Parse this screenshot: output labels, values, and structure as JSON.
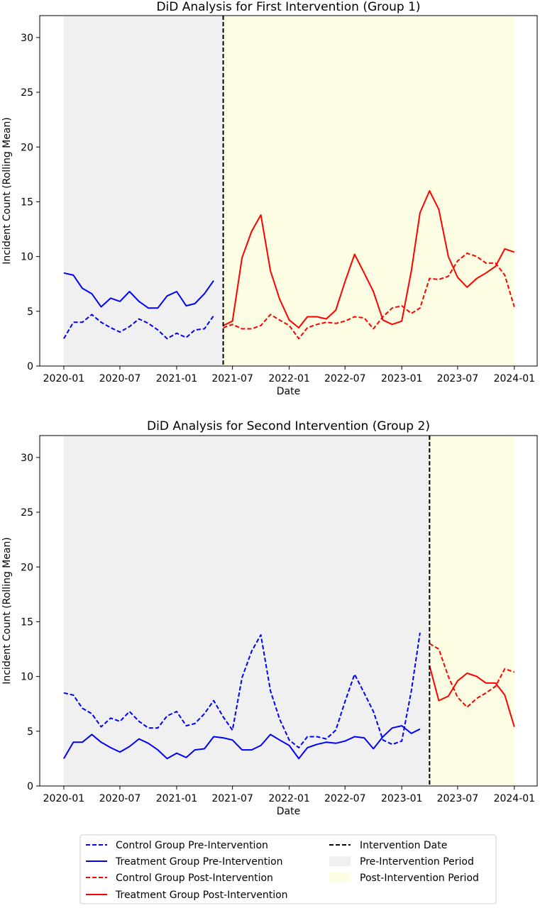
{
  "colors": {
    "control": "#0000ff",
    "treatment": "#0000ff",
    "post": "#ff0000",
    "intervention": "#000000",
    "pre_period": "#f0f0f0",
    "post_period": "#fdfde4"
  },
  "legend": {
    "control_pre": "Control Group Pre-Intervention",
    "treatment_pre": "Treatment Group Pre-Intervention",
    "control_post": "Control Group Post-Intervention",
    "treatment_post": "Treatment Group Post-Intervention",
    "intervention": "Intervention Date",
    "pre_period": "Pre-Intervention Period",
    "post_period": "Post-Intervention Period"
  },
  "chart_data": [
    {
      "type": "line",
      "title": "DiD Analysis for First Intervention (Group 1)",
      "xlabel": "Date",
      "ylabel": "Incident Count (Rolling Mean)",
      "ylim": [
        0,
        32
      ],
      "yticks": [
        0,
        5,
        10,
        15,
        20,
        25,
        30
      ],
      "xlim": [
        "2019-10-15",
        "2024-03-15"
      ],
      "xticks": [
        "2020-01",
        "2020-07",
        "2021-01",
        "2021-07",
        "2022-01",
        "2022-07",
        "2023-01",
        "2023-07",
        "2024-01"
      ],
      "intervention_date": "2021-06-01",
      "pre_period": [
        "2020-01-01",
        "2021-06-01"
      ],
      "post_period": [
        "2021-06-01",
        "2024-01-01"
      ],
      "series": [
        {
          "name": "Control Group Pre-Intervention",
          "group": "control",
          "phase": "pre",
          "x": [
            "2020-01",
            "2020-02",
            "2020-03",
            "2020-04",
            "2020-05",
            "2020-06",
            "2020-07",
            "2020-08",
            "2020-09",
            "2020-10",
            "2020-11",
            "2020-12",
            "2021-01",
            "2021-02",
            "2021-03",
            "2021-04",
            "2021-05"
          ],
          "y": [
            2.5,
            4.0,
            4.0,
            4.7,
            4.0,
            3.5,
            3.1,
            3.6,
            4.3,
            3.9,
            3.3,
            2.5,
            3.0,
            2.6,
            3.3,
            3.4,
            4.6
          ]
        },
        {
          "name": "Treatment Group Pre-Intervention",
          "group": "treatment",
          "phase": "pre",
          "x": [
            "2020-01",
            "2020-02",
            "2020-03",
            "2020-04",
            "2020-05",
            "2020-06",
            "2020-07",
            "2020-08",
            "2020-09",
            "2020-10",
            "2020-11",
            "2020-12",
            "2021-01",
            "2021-02",
            "2021-03",
            "2021-04",
            "2021-05"
          ],
          "y": [
            8.5,
            8.3,
            7.1,
            6.6,
            5.4,
            6.2,
            5.9,
            6.8,
            5.9,
            5.3,
            5.3,
            6.4,
            6.8,
            5.5,
            5.7,
            6.6,
            7.8
          ]
        },
        {
          "name": "Control Group Post-Intervention",
          "group": "control",
          "phase": "post",
          "x": [
            "2021-06",
            "2021-07",
            "2021-08",
            "2021-09",
            "2021-10",
            "2021-11",
            "2021-12",
            "2022-01",
            "2022-02",
            "2022-03",
            "2022-04",
            "2022-05",
            "2022-06",
            "2022-07",
            "2022-08",
            "2022-09",
            "2022-10",
            "2022-11",
            "2022-12",
            "2023-01",
            "2023-02",
            "2023-03",
            "2023-04",
            "2023-05",
            "2023-06",
            "2023-07",
            "2023-08",
            "2023-09",
            "2023-10",
            "2023-11",
            "2023-12",
            "2024-01"
          ],
          "y": [
            3.5,
            3.8,
            3.4,
            3.4,
            3.7,
            4.7,
            4.2,
            3.7,
            2.5,
            3.5,
            3.8,
            4.0,
            3.9,
            4.1,
            4.5,
            4.4,
            3.4,
            4.5,
            5.3,
            5.5,
            4.8,
            5.3,
            8.0,
            7.9,
            8.2,
            9.6,
            10.3,
            10.0,
            9.4,
            9.4,
            8.3,
            5.4
          ]
        },
        {
          "name": "Treatment Group Post-Intervention",
          "group": "treatment",
          "phase": "post",
          "x": [
            "2021-06",
            "2021-07",
            "2021-08",
            "2021-09",
            "2021-10",
            "2021-11",
            "2021-12",
            "2022-01",
            "2022-02",
            "2022-03",
            "2022-04",
            "2022-05",
            "2022-06",
            "2022-07",
            "2022-08",
            "2022-09",
            "2022-10",
            "2022-11",
            "2022-12",
            "2023-01",
            "2023-02",
            "2023-03",
            "2023-04",
            "2023-05",
            "2023-06",
            "2023-07",
            "2023-08",
            "2023-09",
            "2023-10",
            "2023-11",
            "2023-12",
            "2024-01"
          ],
          "y": [
            3.7,
            4.1,
            9.9,
            12.3,
            13.8,
            8.7,
            6.1,
            4.2,
            3.5,
            4.5,
            4.5,
            4.3,
            5.1,
            7.7,
            10.2,
            8.5,
            6.8,
            4.2,
            3.8,
            4.1,
            8.7,
            14.0,
            16.0,
            14.3,
            10.0,
            8.1,
            7.2,
            8.0,
            8.5,
            9.1,
            10.7,
            10.4
          ]
        }
      ]
    },
    {
      "type": "line",
      "title": "DiD Analysis for Second Intervention (Group 2)",
      "xlabel": "Date",
      "ylabel": "Incident Count (Rolling Mean)",
      "ylim": [
        0,
        32
      ],
      "yticks": [
        0,
        5,
        10,
        15,
        20,
        25,
        30
      ],
      "xlim": [
        "2019-10-15",
        "2024-03-15"
      ],
      "xticks": [
        "2020-01",
        "2020-07",
        "2021-01",
        "2021-07",
        "2022-01",
        "2022-07",
        "2023-01",
        "2023-07",
        "2024-01"
      ],
      "intervention_date": "2023-04-01",
      "pre_period": [
        "2020-01-01",
        "2023-04-01"
      ],
      "post_period": [
        "2023-04-01",
        "2024-01-01"
      ],
      "series": [
        {
          "name": "Control Group Pre-Intervention",
          "group": "control",
          "phase": "pre",
          "x": [
            "2020-01",
            "2020-02",
            "2020-03",
            "2020-04",
            "2020-05",
            "2020-06",
            "2020-07",
            "2020-08",
            "2020-09",
            "2020-10",
            "2020-11",
            "2020-12",
            "2021-01",
            "2021-02",
            "2021-03",
            "2021-04",
            "2021-05",
            "2021-06",
            "2021-07",
            "2021-08",
            "2021-09",
            "2021-10",
            "2021-11",
            "2021-12",
            "2022-01",
            "2022-02",
            "2022-03",
            "2022-04",
            "2022-05",
            "2022-06",
            "2022-07",
            "2022-08",
            "2022-09",
            "2022-10",
            "2022-11",
            "2022-12",
            "2023-01",
            "2023-02",
            "2023-03"
          ],
          "y": [
            8.5,
            8.3,
            7.1,
            6.6,
            5.4,
            6.2,
            5.9,
            6.8,
            5.9,
            5.3,
            5.3,
            6.4,
            6.8,
            5.5,
            5.7,
            6.6,
            7.8,
            6.3,
            5.1,
            9.9,
            12.3,
            13.8,
            8.7,
            6.1,
            4.2,
            3.5,
            4.5,
            4.5,
            4.3,
            5.1,
            7.7,
            10.2,
            8.5,
            6.8,
            4.2,
            3.8,
            4.1,
            8.7,
            14.0
          ]
        },
        {
          "name": "Treatment Group Pre-Intervention",
          "group": "treatment",
          "phase": "pre",
          "x": [
            "2020-01",
            "2020-02",
            "2020-03",
            "2020-04",
            "2020-05",
            "2020-06",
            "2020-07",
            "2020-08",
            "2020-09",
            "2020-10",
            "2020-11",
            "2020-12",
            "2021-01",
            "2021-02",
            "2021-03",
            "2021-04",
            "2021-05",
            "2021-06",
            "2021-07",
            "2021-08",
            "2021-09",
            "2021-10",
            "2021-11",
            "2021-12",
            "2022-01",
            "2022-02",
            "2022-03",
            "2022-04",
            "2022-05",
            "2022-06",
            "2022-07",
            "2022-08",
            "2022-09",
            "2022-10",
            "2022-11",
            "2022-12",
            "2023-01",
            "2023-02",
            "2023-03"
          ],
          "y": [
            2.5,
            4.0,
            4.0,
            4.7,
            4.0,
            3.5,
            3.1,
            3.6,
            4.3,
            3.9,
            3.3,
            2.5,
            3.0,
            2.6,
            3.3,
            3.4,
            4.5,
            4.4,
            4.2,
            3.3,
            3.3,
            3.7,
            4.7,
            4.2,
            3.7,
            2.5,
            3.5,
            3.8,
            4.0,
            3.9,
            4.1,
            4.5,
            4.4,
            3.4,
            4.5,
            5.3,
            5.5,
            4.8,
            5.2
          ]
        },
        {
          "name": "Control Group Post-Intervention",
          "group": "control",
          "phase": "post",
          "x": [
            "2023-04",
            "2023-05",
            "2023-06",
            "2023-07",
            "2023-08",
            "2023-09",
            "2023-10",
            "2023-11",
            "2023-12",
            "2024-01"
          ],
          "y": [
            13.0,
            12.5,
            10.0,
            8.1,
            7.2,
            8.0,
            8.5,
            9.1,
            10.7,
            10.4
          ]
        },
        {
          "name": "Treatment Group Post-Intervention",
          "group": "treatment",
          "phase": "post",
          "x": [
            "2023-04",
            "2023-05",
            "2023-06",
            "2023-07",
            "2023-08",
            "2023-09",
            "2023-10",
            "2023-11",
            "2023-12",
            "2024-01"
          ],
          "y": [
            11.0,
            7.8,
            8.2,
            9.6,
            10.3,
            10.0,
            9.4,
            9.4,
            8.3,
            5.4
          ]
        }
      ]
    }
  ]
}
